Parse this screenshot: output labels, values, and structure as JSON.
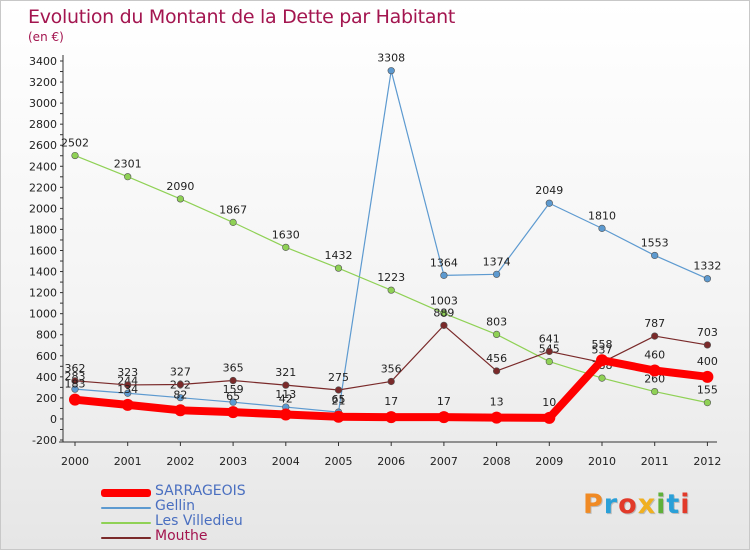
{
  "title": "Evolution du Montant de la Dette par Habitant",
  "subtitle": "(en €)",
  "logo": {
    "text": "Proxiti",
    "colors": [
      "#f08a24",
      "#2aa0d8",
      "#e23a2a",
      "#f0b020",
      "#5fb03a",
      "#2aa0d8",
      "#e23a2a"
    ]
  },
  "chart_data": {
    "type": "line",
    "x": [
      "2000",
      "2001",
      "2002",
      "2003",
      "2004",
      "2005",
      "2006",
      "2007",
      "2008",
      "2009",
      "2010",
      "2011",
      "2012"
    ],
    "y_ticks": [
      -200,
      0,
      200,
      400,
      600,
      800,
      1000,
      1200,
      1400,
      1600,
      1800,
      2000,
      2200,
      2400,
      2600,
      2800,
      3000,
      3200,
      3400
    ],
    "ylim": [
      -200,
      3400
    ],
    "grid": false,
    "legend_position": "bottom-left",
    "series": [
      {
        "name": "SARRAGEOIS",
        "color": "#ff0000",
        "values": [
          183,
          134,
          82,
          65,
          42,
          21,
          17,
          17,
          13,
          10,
          558,
          460,
          400
        ],
        "labels": [
          "183",
          "134",
          "82",
          "65",
          "42",
          "21",
          "17",
          "17",
          "13",
          "10",
          "558",
          "460",
          "400"
        ]
      },
      {
        "name": "Gellin",
        "color": "#5d9ad0",
        "values": [
          283,
          244,
          202,
          159,
          113,
          65,
          3308,
          1364,
          1374,
          2049,
          1810,
          1553,
          1332
        ],
        "labels": [
          "283",
          "244",
          "202",
          "159",
          "113",
          "65",
          "3308",
          "1364",
          "1374",
          "2049",
          "1810",
          "1553",
          "1332"
        ]
      },
      {
        "name": "Les Villedieu",
        "color": "#8fd155",
        "values": [
          2502,
          2301,
          2090,
          1867,
          1630,
          1432,
          1223,
          1003,
          803,
          545,
          388,
          260,
          155
        ],
        "labels": [
          "2502",
          "2301",
          "2090",
          "1867",
          "1630",
          "1432",
          "1223",
          "1003",
          "803",
          "545",
          "388",
          "260",
          "155"
        ]
      },
      {
        "name": "Mouthe",
        "color": "#7a2a2a",
        "values": [
          362,
          323,
          327,
          365,
          321,
          275,
          356,
          889,
          456,
          641,
          537,
          787,
          703
        ],
        "labels": [
          "362",
          "323",
          "327",
          "365",
          "321",
          "275",
          "356",
          "889",
          "456",
          "641",
          "537",
          "787",
          "703"
        ]
      }
    ]
  }
}
